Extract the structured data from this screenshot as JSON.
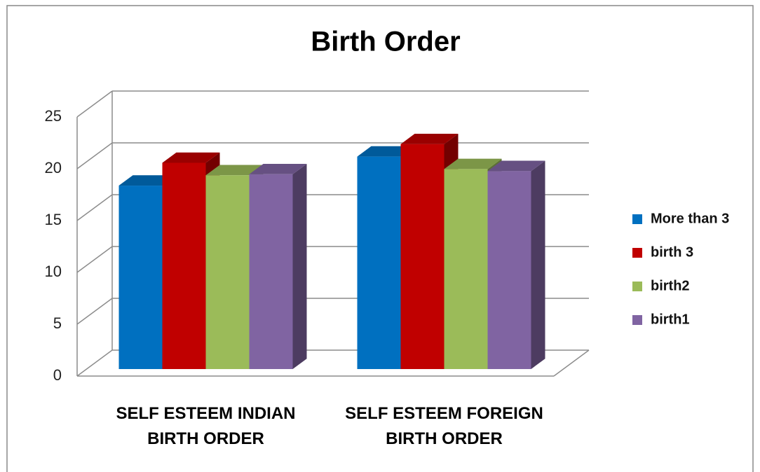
{
  "chart_data": {
    "type": "bar3d",
    "title": "Birth Order",
    "categories": [
      "SELF ESTEEM INDIAN BIRTH ORDER",
      "SELF ESTEEM FOREIGN BIRTH ORDER"
    ],
    "series": [
      {
        "name": "More than 3",
        "color": "#0070c0",
        "values": [
          17.7,
          20.5
        ]
      },
      {
        "name": "birth 3",
        "color": "#c00000",
        "values": [
          19.9,
          21.7
        ]
      },
      {
        "name": "birth2",
        "color": "#9bbb59",
        "values": [
          18.7,
          19.3
        ]
      },
      {
        "name": "birth1",
        "color": "#8064a2",
        "values": [
          18.8,
          19.1
        ]
      }
    ],
    "ylim": [
      0,
      25
    ],
    "yticks": [
      0,
      5,
      10,
      15,
      20,
      25
    ],
    "grid": true,
    "legend": "right"
  }
}
